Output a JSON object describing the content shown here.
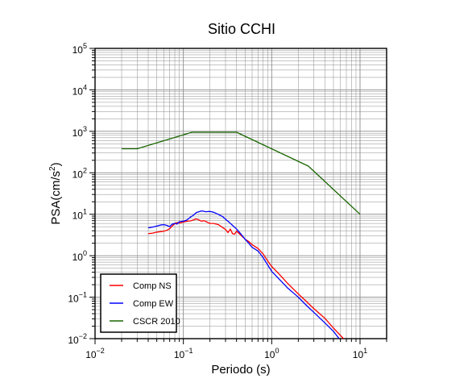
{
  "chart_data": {
    "type": "line",
    "title": "Sitio CCHI",
    "xlabel": "Periodo (s)",
    "ylabel": {
      "base": "PSA(cm/s",
      "sup": "2",
      "end": ")"
    },
    "xscale": "log",
    "yscale": "log",
    "xlim": [
      0.01,
      20
    ],
    "ylim": [
      0.01,
      100000
    ],
    "x_ticks": [
      {
        "value": 0.01,
        "base": "10",
        "exp": "−2"
      },
      {
        "value": 0.1,
        "base": "10",
        "exp": "−1"
      },
      {
        "value": 1,
        "base": "10",
        "exp": "0"
      },
      {
        "value": 10,
        "base": "10",
        "exp": "1"
      }
    ],
    "y_ticks": [
      {
        "value": 0.01,
        "base": "10",
        "exp": "−2"
      },
      {
        "value": 0.1,
        "base": "10",
        "exp": "−1"
      },
      {
        "value": 1,
        "base": "10",
        "exp": "0"
      },
      {
        "value": 10,
        "base": "10",
        "exp": "1"
      },
      {
        "value": 100,
        "base": "10",
        "exp": "2"
      },
      {
        "value": 1000,
        "base": "10",
        "exp": "3"
      },
      {
        "value": 10000,
        "base": "10",
        "exp": "4"
      },
      {
        "value": 100000,
        "base": "10",
        "exp": "5"
      }
    ],
    "grid": true,
    "legend_position": "bottom-left",
    "series": [
      {
        "name": "Comp NS",
        "color": "#ff0000",
        "points": [
          [
            0.04,
            3.4
          ],
          [
            0.045,
            3.5
          ],
          [
            0.05,
            3.7
          ],
          [
            0.055,
            3.8
          ],
          [
            0.06,
            3.9
          ],
          [
            0.065,
            4.1
          ],
          [
            0.07,
            4.5
          ],
          [
            0.075,
            5.2
          ],
          [
            0.08,
            6.0
          ],
          [
            0.085,
            6.3
          ],
          [
            0.09,
            6.1
          ],
          [
            0.1,
            6.5
          ],
          [
            0.11,
            6.8
          ],
          [
            0.12,
            6.9
          ],
          [
            0.13,
            7.3
          ],
          [
            0.14,
            7.7
          ],
          [
            0.15,
            7.3
          ],
          [
            0.16,
            6.8
          ],
          [
            0.17,
            7.0
          ],
          [
            0.18,
            6.7
          ],
          [
            0.19,
            6.3
          ],
          [
            0.2,
            6.0
          ],
          [
            0.22,
            6.0
          ],
          [
            0.25,
            5.6
          ],
          [
            0.27,
            5.0
          ],
          [
            0.3,
            4.3
          ],
          [
            0.32,
            3.6
          ],
          [
            0.34,
            4.4
          ],
          [
            0.36,
            3.4
          ],
          [
            0.38,
            3.3
          ],
          [
            0.4,
            3.9
          ],
          [
            0.45,
            3.1
          ],
          [
            0.5,
            2.5
          ],
          [
            0.55,
            2.2
          ],
          [
            0.6,
            1.85
          ],
          [
            0.7,
            1.5
          ],
          [
            0.8,
            1.1
          ],
          [
            0.9,
            0.75
          ],
          [
            1.0,
            0.55
          ],
          [
            1.2,
            0.37
          ],
          [
            1.5,
            0.22
          ],
          [
            2.0,
            0.12
          ],
          [
            2.5,
            0.077
          ],
          [
            3.0,
            0.053
          ],
          [
            4.0,
            0.031
          ],
          [
            5.0,
            0.018
          ],
          [
            6.0,
            0.012
          ],
          [
            6.5,
            0.01
          ]
        ]
      },
      {
        "name": "Comp EW",
        "color": "#0000ff",
        "points": [
          [
            0.04,
            4.7
          ],
          [
            0.045,
            4.9
          ],
          [
            0.05,
            5.2
          ],
          [
            0.055,
            5.5
          ],
          [
            0.06,
            5.6
          ],
          [
            0.065,
            5.4
          ],
          [
            0.07,
            5.0
          ],
          [
            0.075,
            5.8
          ],
          [
            0.08,
            6.0
          ],
          [
            0.085,
            5.8
          ],
          [
            0.09,
            6.6
          ],
          [
            0.1,
            6.8
          ],
          [
            0.11,
            7.3
          ],
          [
            0.12,
            8.5
          ],
          [
            0.13,
            9.5
          ],
          [
            0.14,
            11.0
          ],
          [
            0.15,
            11.5
          ],
          [
            0.16,
            12.0
          ],
          [
            0.17,
            11.8
          ],
          [
            0.18,
            11.5
          ],
          [
            0.2,
            11.7
          ],
          [
            0.22,
            11.2
          ],
          [
            0.25,
            9.9
          ],
          [
            0.28,
            8.7
          ],
          [
            0.3,
            7.6
          ],
          [
            0.33,
            6.4
          ],
          [
            0.36,
            5.4
          ],
          [
            0.4,
            4.4
          ],
          [
            0.45,
            3.3
          ],
          [
            0.5,
            2.5
          ],
          [
            0.55,
            2.0
          ],
          [
            0.6,
            1.6
          ],
          [
            0.7,
            1.3
          ],
          [
            0.8,
            0.9
          ],
          [
            0.9,
            0.6
          ],
          [
            1.0,
            0.42
          ],
          [
            1.2,
            0.28
          ],
          [
            1.5,
            0.17
          ],
          [
            2.0,
            0.1
          ],
          [
            2.5,
            0.062
          ],
          [
            3.0,
            0.043
          ],
          [
            4.0,
            0.024
          ],
          [
            5.0,
            0.015
          ],
          [
            5.8,
            0.01
          ]
        ]
      },
      {
        "name": "CSCR 2010",
        "color": "#1a6600",
        "points": [
          [
            0.02,
            380
          ],
          [
            0.03,
            380
          ],
          [
            0.125,
            950
          ],
          [
            0.4,
            950
          ],
          [
            2.6,
            145
          ],
          [
            10,
            10
          ]
        ]
      }
    ]
  }
}
